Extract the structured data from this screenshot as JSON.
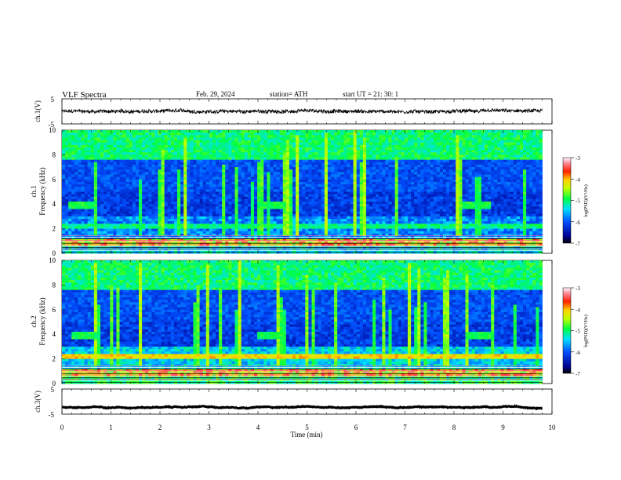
{
  "header": {
    "title": "VLF  Spectra",
    "date": "Feb. 29, 2024",
    "station": "station= ATH",
    "start": "start  UT  =   21: 30: 1"
  },
  "chart_data": [
    {
      "type": "line",
      "panel": "ch1-waveform",
      "ylabel": "ch.1(V)",
      "ylim": [
        -5,
        5
      ],
      "yticks": [
        5,
        -5
      ],
      "xlim": [
        0,
        10
      ],
      "x_extent_min": 9.8,
      "trace_level_v": 0.0
    },
    {
      "type": "heatmap",
      "panel": "ch1-spectrogram",
      "ylabel": "ch.1\nFrequency  (kHz)",
      "ylim": [
        0,
        10
      ],
      "yticks": [
        0,
        2,
        4,
        6,
        8,
        10
      ],
      "xlim": [
        0,
        10
      ],
      "x_extent_min": 9.8,
      "colorbar": {
        "label": "log(PSD)(V²/Hz)",
        "range": [
          -7,
          -3
        ],
        "ticks": [
          "-3",
          "-4",
          "-5",
          "-6",
          "-7"
        ]
      },
      "features": {
        "bursts_min": [
          0.45,
          4.3,
          8.45
        ],
        "burst_freq_khz": 3.9
      }
    },
    {
      "type": "heatmap",
      "panel": "ch2-spectrogram",
      "ylabel": "ch.2\nFrequency  (kHz)",
      "ylim": [
        0,
        10
      ],
      "yticks": [
        0,
        2,
        4,
        6,
        8,
        10
      ],
      "xlim": [
        0,
        10
      ],
      "x_extent_min": 9.8,
      "colorbar": {
        "label": "log(PSD)(V²/Hz)",
        "range": [
          -7,
          -3
        ],
        "ticks": [
          "-3",
          "-4",
          "-5",
          "-6",
          "-7"
        ]
      },
      "features": {
        "bursts_min": [
          0.5,
          4.3,
          8.5
        ],
        "burst_freq_khz": 3.9
      }
    },
    {
      "type": "line",
      "panel": "ch3-waveform",
      "ylabel": "ch.3(V)",
      "ylim": [
        -5,
        5
      ],
      "yticks": [
        5,
        -5
      ],
      "xlim": [
        0,
        10
      ],
      "x_extent_min": 9.8,
      "trace_level_v": -2.2,
      "xlabel": "Time  (min)",
      "xticks": [
        0,
        1,
        2,
        3,
        4,
        5,
        6,
        7,
        8,
        9,
        10
      ]
    }
  ],
  "colors": {
    "low": "#000080",
    "mid": "#00ff00",
    "high": "#ff0000",
    "top": "#ffffff"
  }
}
